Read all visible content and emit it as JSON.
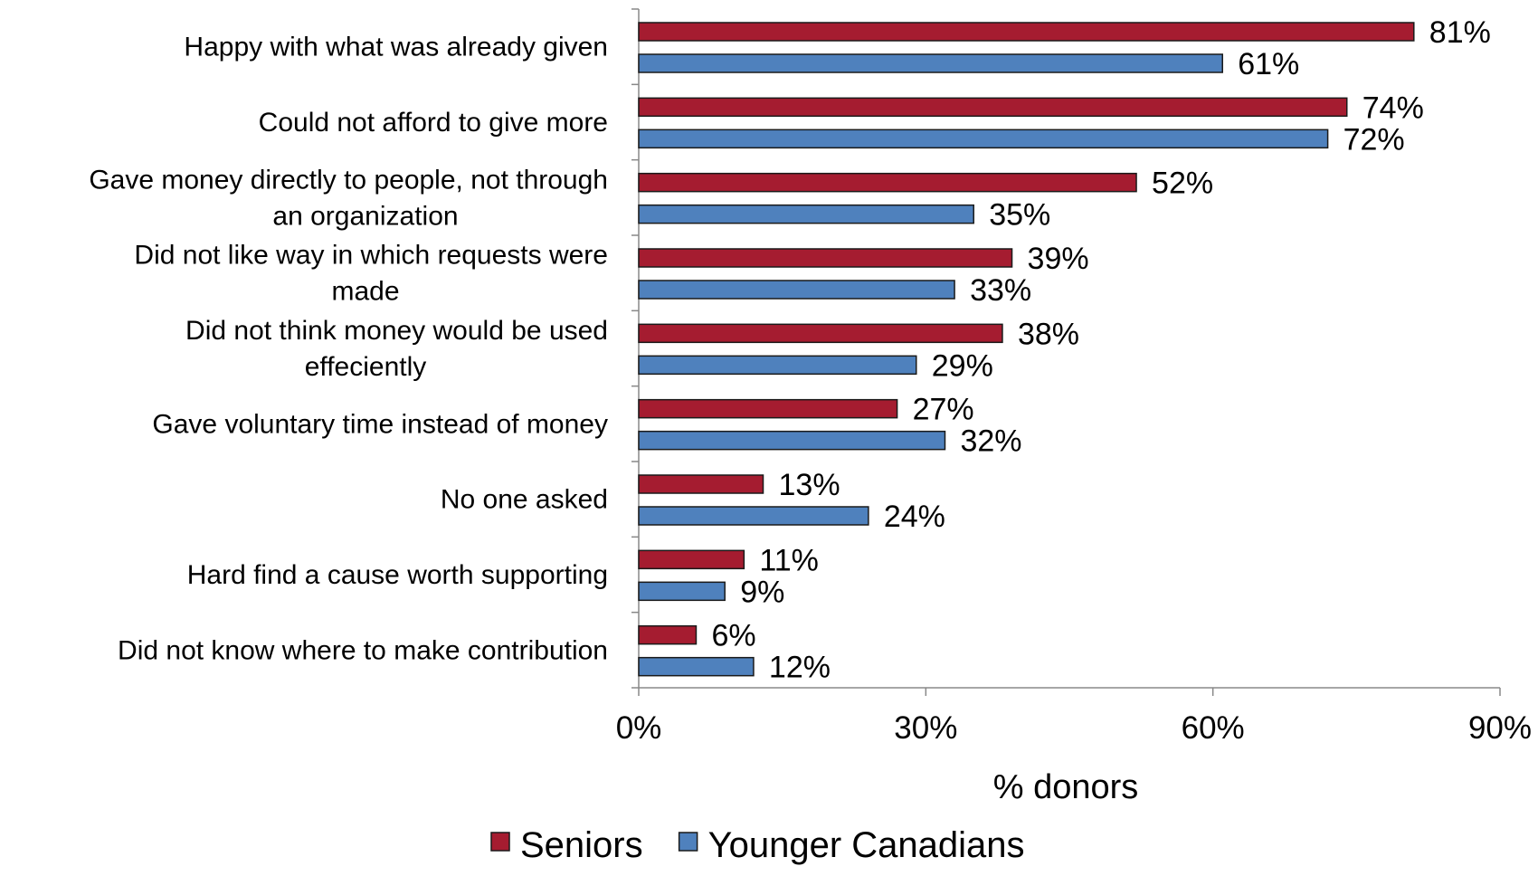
{
  "chart_data": {
    "type": "bar",
    "orientation": "horizontal",
    "title": "",
    "xlabel": "% donors",
    "ylabel": "",
    "xlim": [
      0,
      90
    ],
    "xticks": [
      0,
      30,
      60,
      90
    ],
    "tick_suffix": "%",
    "value_suffix": "%",
    "grid": false,
    "legend_position": "bottom",
    "categories": [
      [
        "Happy with what was already given"
      ],
      [
        "Could not afford to give more"
      ],
      [
        "Gave money directly to people, not through",
        "an organization"
      ],
      [
        "Did not like way in which requests were",
        "made"
      ],
      [
        "Did not think money would be used",
        "effeciently"
      ],
      [
        "Gave voluntary time instead of money"
      ],
      [
        "No one asked"
      ],
      [
        "Hard find a cause worth supporting"
      ],
      [
        "Did not know where to make contribution"
      ]
    ],
    "series": [
      {
        "name": "Seniors",
        "color": "#a51c30",
        "values": [
          81,
          74,
          52,
          39,
          38,
          27,
          13,
          11,
          6
        ]
      },
      {
        "name": "Younger Canadians",
        "color": "#4f81bd",
        "values": [
          61,
          72,
          35,
          33,
          29,
          32,
          24,
          9,
          12
        ]
      }
    ]
  }
}
